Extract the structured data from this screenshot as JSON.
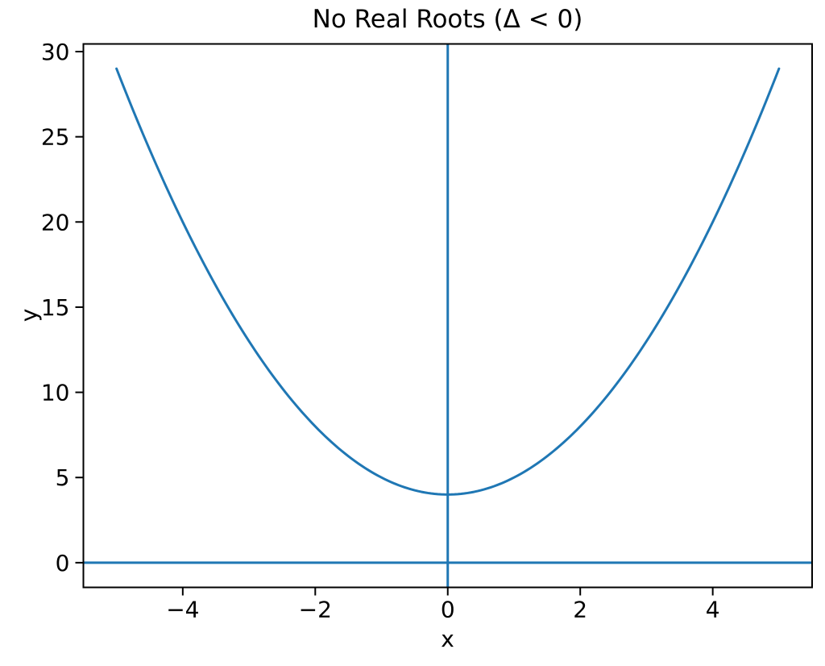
{
  "chart_data": {
    "type": "line",
    "title": "No Real Roots (Δ < 0)",
    "xlabel": "x",
    "ylabel": "y",
    "xlim": [
      -5.5,
      5.5
    ],
    "ylim": [
      -1.45,
      30.45
    ],
    "x_ticks": {
      "values": [
        -4,
        -2,
        0,
        2,
        4
      ],
      "labels": [
        "−4",
        "−2",
        "0",
        "2",
        "4"
      ]
    },
    "y_ticks": {
      "values": [
        0,
        5,
        10,
        15,
        20,
        25,
        30
      ],
      "labels": [
        "0",
        "5",
        "10",
        "15",
        "20",
        "25",
        "30"
      ]
    },
    "grid": false,
    "legend": false,
    "series": [
      {
        "name": "quadratic-curve",
        "kind": "quadratic",
        "equation": "y = x² + 4",
        "coefficients": {
          "a": 1,
          "b": 0,
          "c": 4
        },
        "discriminant": -16,
        "x_range": [
          -5,
          5
        ],
        "color": "#1f77b4",
        "linewidth": 3,
        "points": [
          [
            -5,
            29
          ],
          [
            -4,
            20
          ],
          [
            -3,
            13
          ],
          [
            -2,
            8
          ],
          [
            -1,
            5
          ],
          [
            0,
            4
          ],
          [
            1,
            5
          ],
          [
            2,
            8
          ],
          [
            3,
            13
          ],
          [
            4,
            20
          ],
          [
            5,
            29
          ]
        ]
      },
      {
        "name": "horizontal-zero-line",
        "kind": "hline",
        "y": 0,
        "color": "#1f77b4",
        "linewidth": 3
      },
      {
        "name": "vertical-zero-line",
        "kind": "vline",
        "x": 0,
        "color": "#1f77b4",
        "linewidth": 3
      }
    ],
    "colors": {
      "background": "#ffffff",
      "spines": "#000000",
      "ticks": "#000000",
      "text": "#000000",
      "line": "#1f77b4"
    }
  }
}
